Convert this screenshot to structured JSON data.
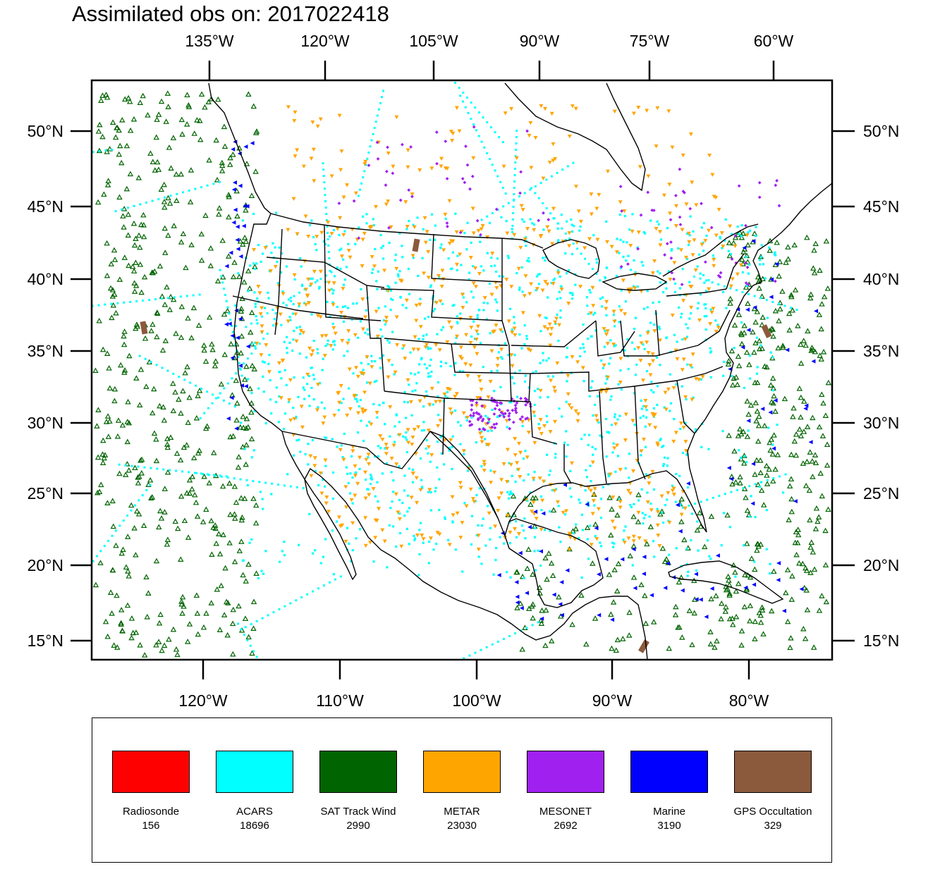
{
  "title": "Assimilated obs on: 2017022418",
  "map": {
    "top_lon_labels": [
      "135°W",
      "120°W",
      "105°W",
      "90°W",
      "75°W",
      "60°W"
    ],
    "bottom_lon_labels": [
      "120°W",
      "110°W",
      "100°W",
      "90°W",
      "80°W"
    ],
    "lat_labels": [
      "50°N",
      "45°N",
      "40°N",
      "35°N",
      "30°N",
      "25°N",
      "20°N",
      "15°N"
    ],
    "lat_values": [
      50,
      45,
      40,
      35,
      30,
      25,
      20,
      15
    ],
    "bottom_lon_values": [
      -120,
      -110,
      -100,
      -90,
      -80
    ],
    "top_lon_values": [
      -135,
      -120,
      -105,
      -90,
      -75,
      -60
    ],
    "colors": {
      "coastline": "#000000",
      "state_lines": "#000000"
    }
  },
  "legend": [
    {
      "name": "Radiosonde",
      "count": "156",
      "color": "#ff0000"
    },
    {
      "name": "ACARS",
      "count": "18696",
      "color": "#00ffff"
    },
    {
      "name": "SAT Track Wind",
      "count": "2990",
      "color": "#006400"
    },
    {
      "name": "METAR",
      "count": "23030",
      "color": "#ffa500"
    },
    {
      "name": "MESONET",
      "count": "2692",
      "color": "#a020f0"
    },
    {
      "name": "Marine",
      "count": "3190",
      "color": "#0000ff"
    },
    {
      "name": "GPS Occultation",
      "count": "329",
      "color": "#8b5a3c"
    }
  ]
}
